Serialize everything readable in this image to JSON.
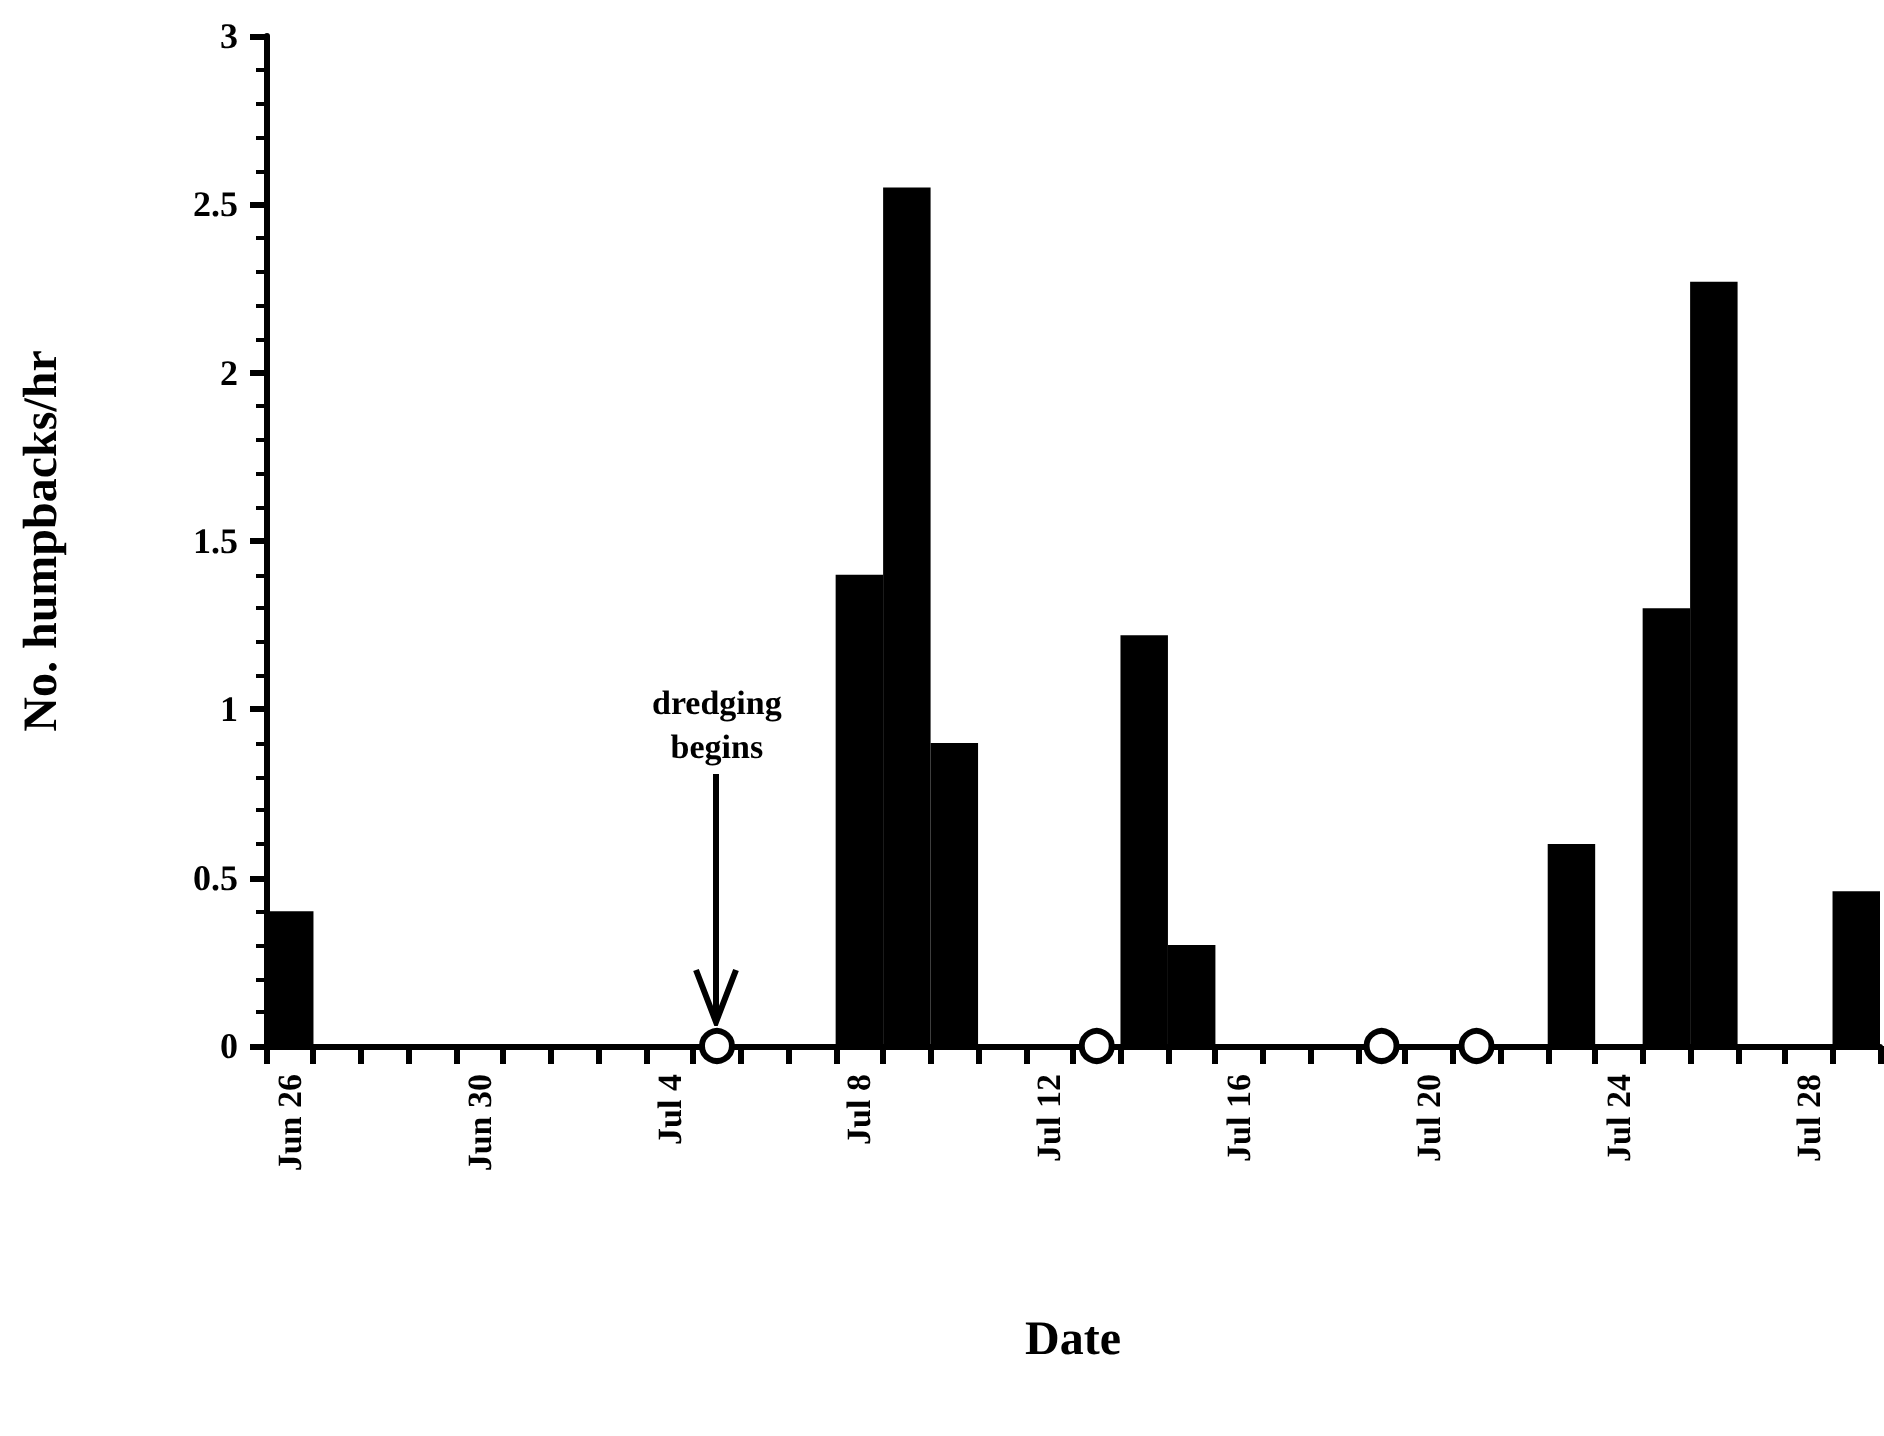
{
  "chart_data": {
    "type": "bar",
    "xlabel": "Date",
    "ylabel": "No. humpbacks/hr",
    "categories": [
      "Jun 26",
      null,
      null,
      null,
      "Jun 30",
      null,
      null,
      null,
      "Jul 4",
      null,
      null,
      null,
      "Jul 8",
      null,
      null,
      null,
      "Jul 12",
      null,
      null,
      null,
      "Jul 16",
      null,
      null,
      null,
      "Jul 20",
      null,
      null,
      null,
      "Jul 24",
      null,
      null,
      null,
      "Jul 28",
      null
    ],
    "series": [
      {
        "color": "#000000",
        "values": [
          0.4,
          0,
          0,
          0,
          0,
          0,
          0,
          0,
          0,
          0,
          0,
          0,
          1.4,
          2.55,
          0.9,
          0,
          0,
          0,
          1.22,
          0.3,
          0,
          0,
          0,
          0,
          0,
          0,
          0,
          0.6,
          0,
          1.3,
          2.27,
          0,
          0,
          0.46
        ]
      },
      {
        "type": "scatter",
        "color": "#ffffff",
        "values": [
          null,
          null,
          null,
          null,
          null,
          null,
          null,
          null,
          null,
          0,
          null,
          null,
          null,
          null,
          null,
          null,
          null,
          0,
          null,
          null,
          null,
          null,
          null,
          0,
          null,
          0,
          null,
          null,
          null,
          null,
          null,
          null,
          null,
          null
        ]
      }
    ],
    "ylim": [
      0,
      3
    ],
    "yticks": [
      0,
      0.5,
      1,
      1.5,
      2,
      2.5,
      3
    ],
    "marker": "circle",
    "grid": false,
    "annotations": [
      "dredging begins"
    ]
  }
}
